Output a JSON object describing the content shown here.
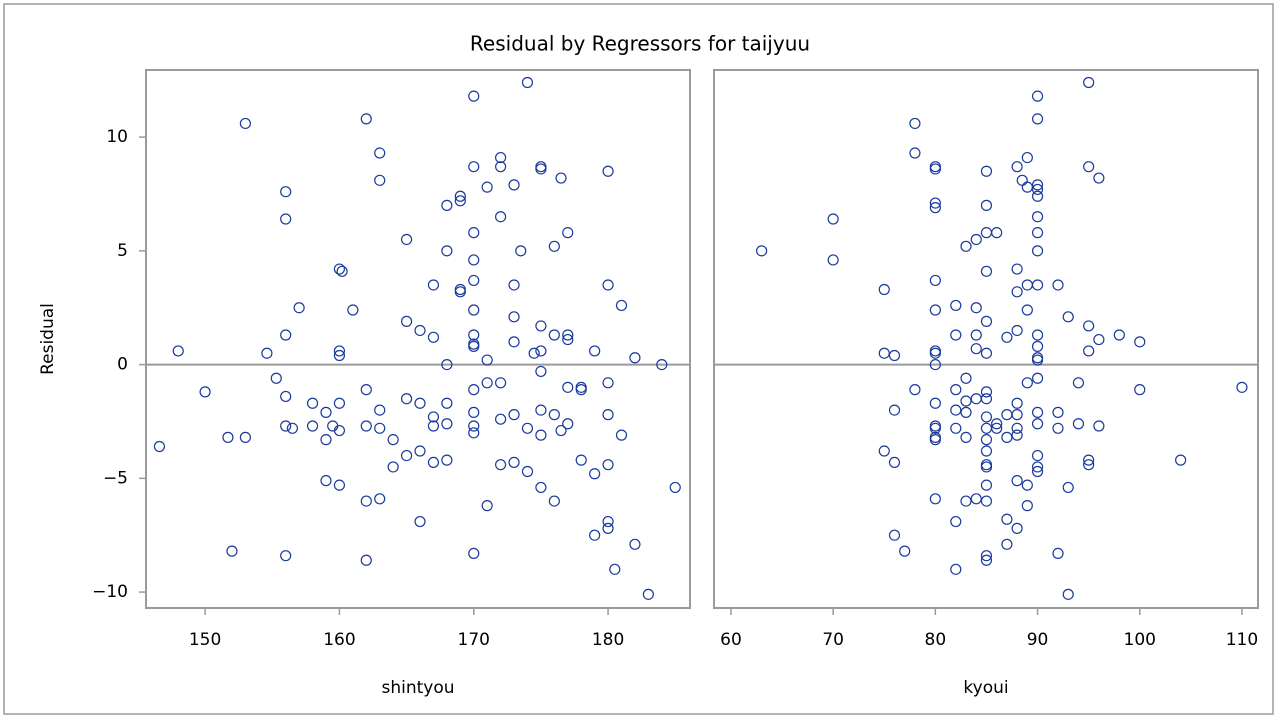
{
  "chart_data": {
    "type": "scatter",
    "title": "Residual by Regressors for taijyuu",
    "ylabel": "Residual",
    "ylim": [
      -10.7,
      12.95
    ],
    "yticks": [
      {
        "value": -10,
        "label": "−10"
      },
      {
        "value": -5,
        "label": "−5"
      },
      0,
      5,
      10
    ],
    "hline": 0,
    "color": "#1a3a9c",
    "panels": [
      {
        "xlabel": "shintyou",
        "xlim": [
          145.6,
          186.1
        ],
        "xticks": [
          150,
          160,
          170,
          180
        ],
        "x": [
          146.6,
          148,
          150,
          151.7,
          152,
          153,
          153,
          154.6,
          155.3,
          156,
          156,
          156,
          156,
          156,
          156.5,
          156,
          157,
          158,
          158,
          159,
          159,
          159,
          159.5,
          160,
          160.2,
          160,
          160,
          160,
          160,
          160,
          161,
          162,
          162,
          162,
          162,
          162,
          163,
          163,
          163,
          163,
          163,
          164,
          164,
          165,
          165,
          165,
          165,
          166,
          166,
          166,
          166,
          167,
          167,
          167,
          167,
          167,
          168,
          168,
          168,
          168,
          168,
          168,
          169,
          169,
          169,
          169,
          170,
          170,
          170,
          170,
          170,
          170,
          170,
          170,
          170,
          170,
          170,
          170,
          170,
          170,
          171,
          171,
          171,
          171,
          172,
          172,
          172,
          172,
          172,
          172,
          173,
          173,
          173,
          173,
          173,
          173,
          173.5,
          174,
          174,
          174,
          174.5,
          175,
          175,
          175,
          175,
          175,
          175,
          175,
          175,
          176,
          176,
          176,
          176,
          176.5,
          176.5,
          177,
          177,
          177,
          177,
          177,
          178,
          178,
          178,
          179,
          179,
          179,
          180,
          180,
          180,
          180,
          180,
          180,
          180,
          180.5,
          181,
          181,
          182,
          182,
          183,
          184,
          185
        ],
        "y": [
          -3.6,
          0.6,
          -1.2,
          -3.2,
          -8.2,
          10.6,
          -3.2,
          0.5,
          -0.6,
          7.6,
          6.4,
          1.3,
          -1.4,
          -2.7,
          -2.8,
          -8.4,
          2.5,
          -1.7,
          -2.7,
          -2.1,
          -3.3,
          -5.1,
          -2.7,
          4.2,
          4.1,
          0.6,
          0.4,
          -1.7,
          -2.9,
          -5.3,
          2.4,
          10.8,
          -1.1,
          -2.7,
          -6.0,
          -8.6,
          9.3,
          8.1,
          -2.0,
          -2.8,
          -5.9,
          -3.3,
          -4.5,
          5.5,
          1.9,
          -1.5,
          -4.0,
          1.5,
          -1.7,
          -3.8,
          -6.9,
          3.5,
          1.2,
          -2.3,
          -2.7,
          -4.3,
          7.0,
          5.0,
          0.0,
          -1.7,
          -2.6,
          -4.2,
          7.4,
          7.2,
          3.3,
          3.2,
          11.8,
          8.7,
          5.8,
          4.6,
          3.7,
          2.4,
          1.3,
          0.9,
          0.8,
          -1.1,
          -2.1,
          -2.7,
          -3.0,
          -8.3,
          7.8,
          0.2,
          -0.8,
          -6.2,
          9.1,
          8.7,
          6.5,
          -0.8,
          -2.4,
          -4.4,
          7.9,
          3.5,
          2.1,
          1.0,
          -2.2,
          -4.3,
          5.0,
          12.4,
          -2.8,
          -4.7,
          0.5,
          8.7,
          8.6,
          1.7,
          0.6,
          -0.3,
          -2.0,
          -3.1,
          -5.4,
          5.2,
          1.3,
          -2.2,
          -6.0,
          8.2,
          -2.9,
          5.8,
          1.3,
          1.1,
          -1.0,
          -2.6,
          -1.0,
          -4.2,
          -1.1,
          0.6,
          -4.8,
          -7.5,
          8.5,
          3.5,
          -0.8,
          -2.2,
          -4.4,
          -6.9,
          -7.2,
          -9.0,
          2.6,
          -3.1,
          0.3,
          -7.9,
          -10.1,
          0.0,
          -5.4
        ]
      },
      {
        "xlabel": "kyoui",
        "xlim": [
          58.34,
          111.57
        ],
        "xticks": [
          60,
          70,
          80,
          90,
          100,
          110
        ],
        "x": [
          63,
          70,
          70,
          75,
          75,
          75,
          76,
          76,
          76,
          76,
          77,
          78,
          78,
          78,
          80,
          80,
          80,
          80,
          80,
          80,
          80,
          80,
          80,
          80,
          80,
          80,
          80,
          80,
          80,
          82,
          82,
          82,
          82,
          82,
          82,
          82,
          83,
          83,
          83,
          83,
          83,
          83,
          84,
          84,
          84,
          84,
          84,
          84,
          85,
          85,
          85,
          85,
          85,
          85,
          85,
          85,
          85,
          85,
          85,
          85,
          85,
          85,
          85,
          85,
          85,
          85,
          86,
          86,
          86,
          87,
          87,
          87,
          87,
          87,
          88,
          88,
          88,
          88,
          88,
          88,
          88,
          88,
          88,
          88,
          88.5,
          89,
          89,
          89,
          89,
          89,
          89,
          89,
          90,
          90,
          90,
          90,
          90,
          90,
          90,
          90,
          90,
          90,
          90,
          90,
          90,
          90,
          90,
          90,
          90,
          90,
          90,
          92,
          92,
          92,
          92,
          93,
          93,
          93,
          94,
          94,
          95,
          95,
          95,
          95,
          95,
          95,
          96,
          96,
          96,
          98,
          100,
          100,
          104,
          110
        ],
        "y": [
          5.0,
          6.4,
          4.6,
          3.3,
          0.5,
          -3.8,
          0.4,
          -2.0,
          -4.3,
          -7.5,
          -8.2,
          10.6,
          9.3,
          -1.1,
          8.7,
          8.6,
          7.1,
          6.9,
          3.7,
          2.4,
          0.6,
          0.5,
          0.0,
          -1.7,
          -2.7,
          -2.8,
          -3.2,
          -3.3,
          -5.9,
          2.6,
          1.3,
          -1.1,
          -2.0,
          -2.8,
          -6.9,
          -9.0,
          5.2,
          -0.6,
          -1.6,
          -2.1,
          -3.2,
          -6.0,
          5.5,
          2.5,
          0.7,
          1.3,
          -1.5,
          -5.9,
          8.5,
          7.0,
          5.8,
          4.1,
          1.9,
          0.5,
          -1.2,
          -1.5,
          -2.3,
          -2.8,
          -3.3,
          -3.8,
          -4.4,
          -4.5,
          -5.3,
          -6.0,
          -8.4,
          -8.6,
          5.8,
          -2.6,
          -2.8,
          1.2,
          -2.2,
          -3.2,
          -6.8,
          -7.9,
          8.7,
          4.2,
          3.2,
          1.5,
          -1.7,
          -2.2,
          -2.8,
          -3.1,
          -5.1,
          -7.2,
          8.1,
          9.1,
          7.8,
          3.5,
          2.4,
          -0.8,
          -5.3,
          -6.2,
          11.8,
          10.8,
          7.9,
          7.7,
          7.4,
          6.5,
          5.8,
          5.0,
          3.5,
          1.3,
          0.8,
          0.3,
          0.2,
          -0.6,
          -2.1,
          -2.6,
          -4.0,
          -4.5,
          -4.7,
          3.5,
          -2.1,
          -2.8,
          -8.3,
          2.1,
          -5.4,
          -10.1,
          -0.8,
          -2.6,
          12.4,
          8.7,
          1.7,
          0.6,
          -4.2,
          -4.4,
          8.2,
          1.1,
          -2.7,
          1.3,
          1.0,
          -1.1,
          -4.2,
          -1.0
        ]
      }
    ]
  }
}
